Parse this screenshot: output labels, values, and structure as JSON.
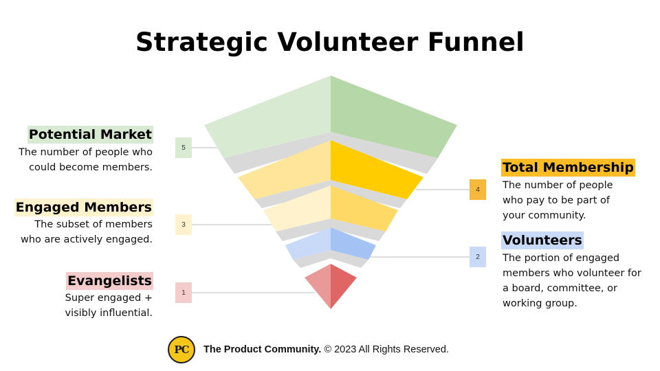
{
  "title": "Strategic Volunteer Funnel",
  "levels": [
    {
      "number": "5",
      "heading": "Potential Market",
      "description_lines": [
        "The number of people who",
        "could become members."
      ],
      "color_light": "#d9ead3",
      "color_dark": "#b6d7a8",
      "badge_color": "#d9ead3"
    },
    {
      "number": "4",
      "heading": "Total Membership",
      "description_lines": [
        "The number of people",
        "who pay to be part of",
        "your community."
      ],
      "color_light": "#ffe599",
      "color_dark": "#ffcc00",
      "badge_color": "#f6b93b",
      "heading_highlight": "#fbbc26"
    },
    {
      "number": "3",
      "heading": "Engaged Members",
      "description_lines": [
        "The subset of members",
        "who are actively engaged."
      ],
      "color_light": "#fff2cc",
      "color_dark": "#ffd966",
      "badge_color": "#fff2cc",
      "heading_highlight": "#fff2cc"
    },
    {
      "number": "2",
      "heading": "Volunteers",
      "description_lines": [
        "The portion of engaged",
        "members who volunteer for",
        "a board, committee, or",
        "working group."
      ],
      "color_light": "#c9daf8",
      "color_dark": "#a4c2f4",
      "badge_color": "#c9daf8",
      "heading_highlight": "#c9daf8"
    },
    {
      "number": "1",
      "heading": "Evangelists",
      "description_lines": [
        "Super engaged +",
        "visibly influential."
      ],
      "color_light": "#ea9999",
      "color_dark": "#e06666",
      "badge_color": "#f4cccc",
      "heading_highlight": "#f4cccc"
    }
  ],
  "footer": {
    "logo_text": "PC",
    "brand": "The Product Community.",
    "rights": "© 2023 All Rights Reserved."
  }
}
